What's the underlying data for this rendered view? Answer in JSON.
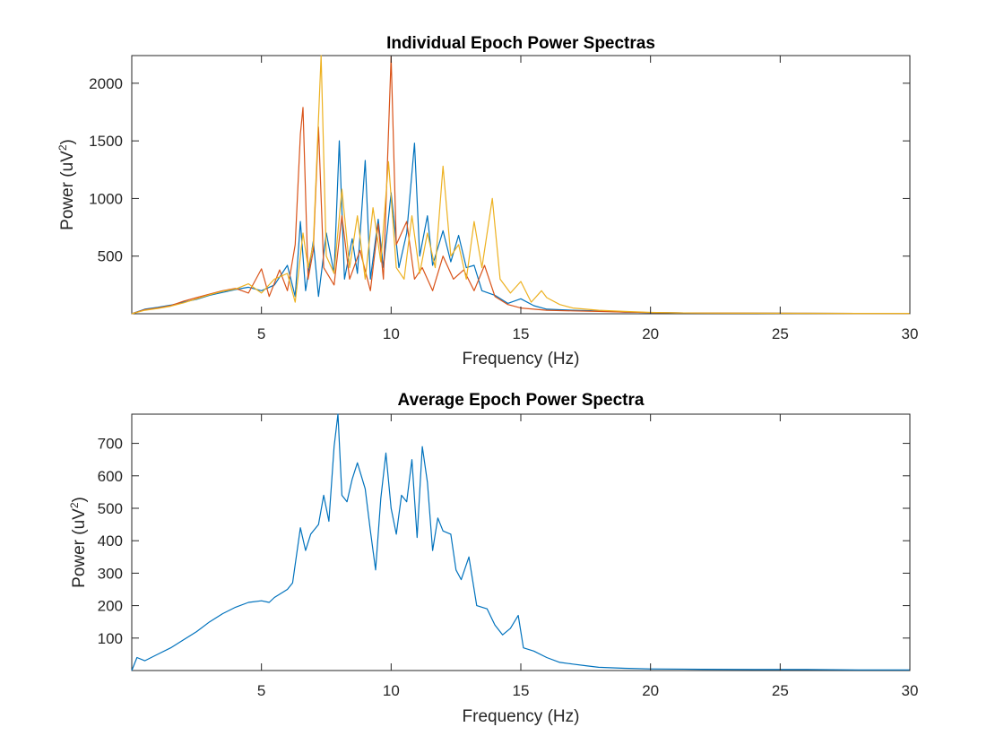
{
  "chart_data": [
    {
      "type": "line",
      "title": "Individual Epoch Power Spectras",
      "xlabel": "Frequency (Hz)",
      "ylabel_base": "Power (uV",
      "ylabel_sup": "2",
      "ylabel_end": ")",
      "xlim": [
        0,
        30
      ],
      "ylim": [
        0,
        2240
      ],
      "xticks": [
        5,
        10,
        15,
        20,
        25,
        30
      ],
      "yticks": [
        500,
        1000,
        1500,
        2000
      ],
      "grid": false,
      "series": [
        {
          "color": "#0072BD",
          "points": [
            [
              0,
              0
            ],
            [
              0.5,
              40
            ],
            [
              1,
              55
            ],
            [
              1.5,
              75
            ],
            [
              2,
              100
            ],
            [
              2.5,
              125
            ],
            [
              3,
              160
            ],
            [
              3.5,
              185
            ],
            [
              4,
              210
            ],
            [
              4.5,
              230
            ],
            [
              5,
              200
            ],
            [
              5.5,
              250
            ],
            [
              6,
              420
            ],
            [
              6.3,
              150
            ],
            [
              6.5,
              800
            ],
            [
              6.7,
              200
            ],
            [
              7,
              630
            ],
            [
              7.2,
              150
            ],
            [
              7.5,
              700
            ],
            [
              7.8,
              350
            ],
            [
              8,
              1500
            ],
            [
              8.2,
              300
            ],
            [
              8.5,
              650
            ],
            [
              8.7,
              350
            ],
            [
              9,
              1330
            ],
            [
              9.2,
              300
            ],
            [
              9.5,
              820
            ],
            [
              9.7,
              400
            ],
            [
              10,
              1050
            ],
            [
              10.3,
              400
            ],
            [
              10.6,
              700
            ],
            [
              10.9,
              1480
            ],
            [
              11.1,
              500
            ],
            [
              11.4,
              850
            ],
            [
              11.6,
              420
            ],
            [
              12,
              720
            ],
            [
              12.3,
              450
            ],
            [
              12.6,
              680
            ],
            [
              12.9,
              400
            ],
            [
              13.2,
              420
            ],
            [
              13.5,
              200
            ],
            [
              14,
              160
            ],
            [
              14.5,
              90
            ],
            [
              15,
              130
            ],
            [
              15.5,
              70
            ],
            [
              16,
              40
            ],
            [
              17,
              30
            ],
            [
              18,
              25
            ],
            [
              19,
              15
            ],
            [
              20,
              10
            ],
            [
              21,
              8
            ],
            [
              22,
              6
            ],
            [
              24,
              5
            ],
            [
              26,
              4
            ],
            [
              28,
              3
            ],
            [
              30,
              3
            ]
          ]
        },
        {
          "color": "#D95319",
          "points": [
            [
              0,
              0
            ],
            [
              0.5,
              35
            ],
            [
              1,
              50
            ],
            [
              1.5,
              70
            ],
            [
              2,
              110
            ],
            [
              2.5,
              140
            ],
            [
              3,
              170
            ],
            [
              3.5,
              200
            ],
            [
              4,
              220
            ],
            [
              4.5,
              180
            ],
            [
              5,
              390
            ],
            [
              5.3,
              150
            ],
            [
              5.7,
              380
            ],
            [
              6,
              200
            ],
            [
              6.3,
              600
            ],
            [
              6.5,
              1560
            ],
            [
              6.6,
              1790
            ],
            [
              6.8,
              300
            ],
            [
              7,
              550
            ],
            [
              7.2,
              1620
            ],
            [
              7.4,
              400
            ],
            [
              7.8,
              250
            ],
            [
              8.1,
              850
            ],
            [
              8.4,
              300
            ],
            [
              8.8,
              550
            ],
            [
              9.2,
              200
            ],
            [
              9.5,
              780
            ],
            [
              9.7,
              300
            ],
            [
              10,
              2230
            ],
            [
              10.2,
              600
            ],
            [
              10.6,
              800
            ],
            [
              10.9,
              300
            ],
            [
              11.2,
              400
            ],
            [
              11.6,
              200
            ],
            [
              12,
              500
            ],
            [
              12.4,
              300
            ],
            [
              12.8,
              380
            ],
            [
              13.2,
              200
            ],
            [
              13.6,
              420
            ],
            [
              14,
              150
            ],
            [
              14.5,
              80
            ],
            [
              15,
              50
            ],
            [
              15.5,
              40
            ],
            [
              16,
              30
            ],
            [
              17,
              25
            ],
            [
              18,
              20
            ],
            [
              19,
              15
            ],
            [
              20,
              10
            ],
            [
              21,
              8
            ],
            [
              22,
              6
            ],
            [
              24,
              5
            ],
            [
              26,
              4
            ],
            [
              28,
              3
            ],
            [
              30,
              3
            ]
          ]
        },
        {
          "color": "#EDB120",
          "points": [
            [
              0,
              0
            ],
            [
              0.5,
              30
            ],
            [
              1,
              45
            ],
            [
              1.5,
              65
            ],
            [
              2,
              95
            ],
            [
              2.5,
              130
            ],
            [
              3,
              165
            ],
            [
              3.5,
              195
            ],
            [
              4,
              215
            ],
            [
              4.5,
              260
            ],
            [
              5,
              180
            ],
            [
              5.5,
              300
            ],
            [
              6,
              350
            ],
            [
              6.3,
              100
            ],
            [
              6.6,
              700
            ],
            [
              6.8,
              400
            ],
            [
              7,
              600
            ],
            [
              7.3,
              2240
            ],
            [
              7.5,
              500
            ],
            [
              7.8,
              350
            ],
            [
              8.1,
              1080
            ],
            [
              8.4,
              400
            ],
            [
              8.7,
              850
            ],
            [
              9,
              300
            ],
            [
              9.3,
              920
            ],
            [
              9.6,
              450
            ],
            [
              9.9,
              1320
            ],
            [
              10.2,
              400
            ],
            [
              10.5,
              300
            ],
            [
              10.8,
              850
            ],
            [
              11.1,
              350
            ],
            [
              11.4,
              700
            ],
            [
              11.7,
              400
            ],
            [
              12,
              1280
            ],
            [
              12.3,
              500
            ],
            [
              12.6,
              600
            ],
            [
              12.9,
              300
            ],
            [
              13.2,
              800
            ],
            [
              13.5,
              400
            ],
            [
              13.9,
              1000
            ],
            [
              14.2,
              300
            ],
            [
              14.6,
              180
            ],
            [
              15,
              280
            ],
            [
              15.4,
              100
            ],
            [
              15.8,
              200
            ],
            [
              16,
              140
            ],
            [
              16.5,
              80
            ],
            [
              17,
              50
            ],
            [
              18,
              30
            ],
            [
              19,
              20
            ],
            [
              20,
              12
            ],
            [
              21,
              8
            ],
            [
              22,
              6
            ],
            [
              24,
              5
            ],
            [
              26,
              4
            ],
            [
              28,
              3
            ],
            [
              30,
              3
            ]
          ]
        }
      ]
    },
    {
      "type": "line",
      "title": "Average Epoch Power Spectra",
      "xlabel": "Frequency (Hz)",
      "ylabel_base": "Power (uV",
      "ylabel_sup": "2",
      "ylabel_end": ")",
      "xlim": [
        0,
        30
      ],
      "ylim": [
        0,
        790
      ],
      "xticks": [
        5,
        10,
        15,
        20,
        25,
        30
      ],
      "yticks": [
        100,
        200,
        300,
        400,
        500,
        600,
        700
      ],
      "grid": false,
      "series": [
        {
          "color": "#0072BD",
          "points": [
            [
              0,
              0
            ],
            [
              0.2,
              40
            ],
            [
              0.5,
              30
            ],
            [
              1,
              50
            ],
            [
              1.5,
              70
            ],
            [
              2,
              95
            ],
            [
              2.5,
              120
            ],
            [
              3,
              150
            ],
            [
              3.5,
              175
            ],
            [
              4,
              195
            ],
            [
              4.5,
              210
            ],
            [
              5,
              215
            ],
            [
              5.3,
              210
            ],
            [
              5.5,
              225
            ],
            [
              6,
              250
            ],
            [
              6.2,
              270
            ],
            [
              6.5,
              440
            ],
            [
              6.7,
              370
            ],
            [
              6.9,
              420
            ],
            [
              7.2,
              450
            ],
            [
              7.4,
              540
            ],
            [
              7.6,
              460
            ],
            [
              7.8,
              690
            ],
            [
              7.95,
              790
            ],
            [
              8.1,
              540
            ],
            [
              8.3,
              520
            ],
            [
              8.5,
              590
            ],
            [
              8.7,
              640
            ],
            [
              9,
              560
            ],
            [
              9.2,
              430
            ],
            [
              9.4,
              310
            ],
            [
              9.6,
              530
            ],
            [
              9.8,
              670
            ],
            [
              10,
              500
            ],
            [
              10.2,
              420
            ],
            [
              10.4,
              540
            ],
            [
              10.6,
              520
            ],
            [
              10.8,
              650
            ],
            [
              11,
              410
            ],
            [
              11.2,
              690
            ],
            [
              11.4,
              580
            ],
            [
              11.6,
              370
            ],
            [
              11.8,
              470
            ],
            [
              12,
              430
            ],
            [
              12.3,
              420
            ],
            [
              12.5,
              310
            ],
            [
              12.7,
              280
            ],
            [
              13,
              350
            ],
            [
              13.3,
              200
            ],
            [
              13.7,
              190
            ],
            [
              14,
              140
            ],
            [
              14.3,
              110
            ],
            [
              14.6,
              130
            ],
            [
              14.9,
              170
            ],
            [
              15.1,
              70
            ],
            [
              15.5,
              60
            ],
            [
              16,
              40
            ],
            [
              16.5,
              25
            ],
            [
              17,
              20
            ],
            [
              17.5,
              15
            ],
            [
              18,
              10
            ],
            [
              19,
              7
            ],
            [
              20,
              5
            ],
            [
              22,
              4
            ],
            [
              24,
              3
            ],
            [
              26,
              3
            ],
            [
              28,
              2
            ],
            [
              30,
              2
            ]
          ]
        }
      ]
    }
  ]
}
